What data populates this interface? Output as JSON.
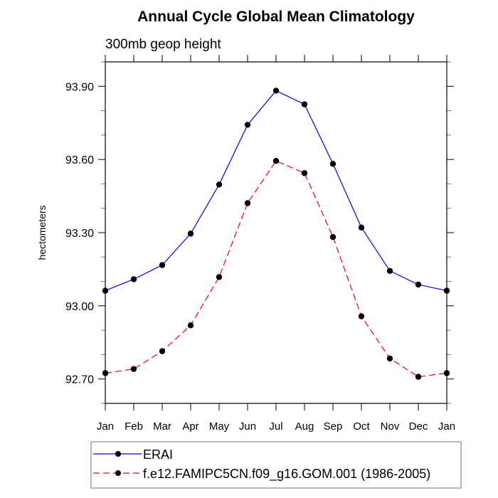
{
  "chart_data": {
    "type": "line",
    "title": "Annual Cycle Global Mean Climatology",
    "subtitle": "300mb geop height",
    "xlabel": "",
    "ylabel": "hectometers",
    "categories": [
      "Jan",
      "Feb",
      "Mar",
      "Apr",
      "May",
      "Jun",
      "Jul",
      "Aug",
      "Sep",
      "Oct",
      "Nov",
      "Dec",
      "Jan"
    ],
    "ylim": [
      92.6,
      94.0
    ],
    "y_major_ticks": [
      92.7,
      93.0,
      93.3,
      93.6,
      93.9
    ],
    "y_tick_labels": [
      "92.70",
      "93.00",
      "93.30",
      "93.60",
      "93.90"
    ],
    "y_minor_step": 0.1,
    "grid": false,
    "legend_position": "bottom",
    "series": [
      {
        "name": "ERAI",
        "color": "#0000ff",
        "dash": "solid",
        "marker": "filled-circle",
        "marker_color": "#000000",
        "values": [
          93.062,
          93.109,
          93.167,
          93.296,
          93.497,
          93.742,
          93.882,
          93.826,
          93.582,
          93.321,
          93.143,
          93.087,
          93.062
        ]
      },
      {
        "name": "f.e12.FAMIPC5CN.f09_g16.GOM.001 (1986-2005)",
        "color": "#ff0000",
        "dash": "dashed",
        "marker": "filled-circle",
        "marker_color": "#000000",
        "values": [
          92.724,
          92.741,
          92.814,
          92.92,
          93.118,
          93.421,
          93.594,
          93.544,
          93.282,
          92.957,
          92.784,
          92.709,
          92.724
        ]
      }
    ]
  }
}
